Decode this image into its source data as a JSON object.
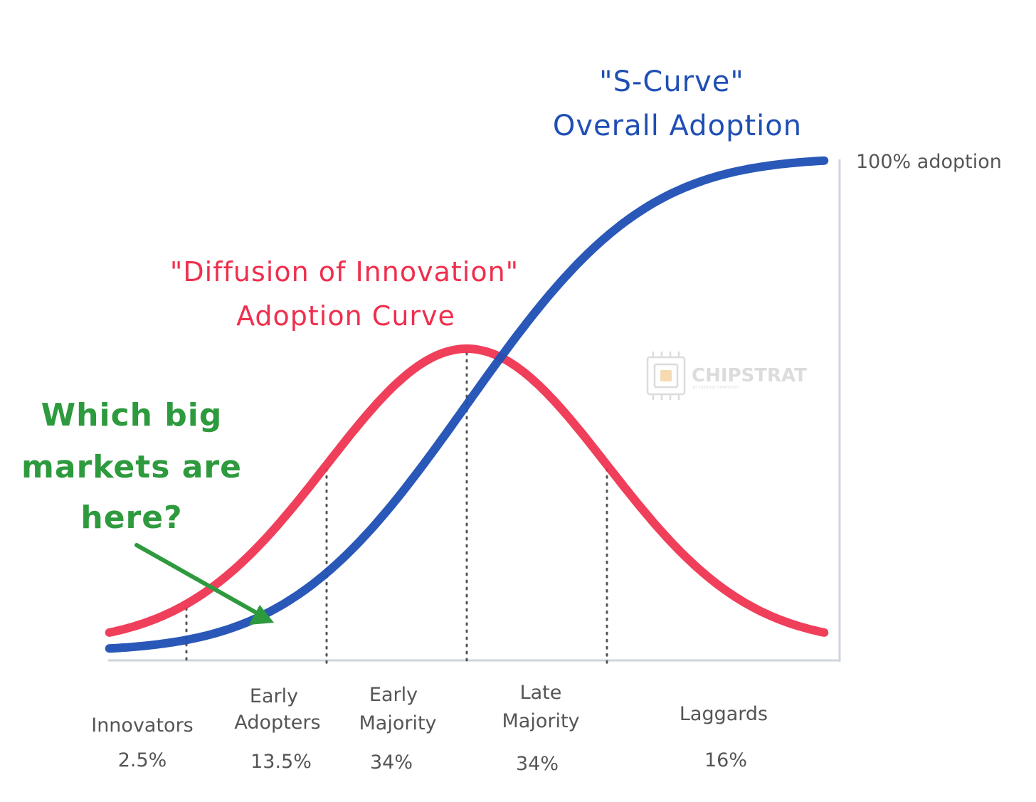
{
  "colors": {
    "bell": "#ef2f4d",
    "scurve": "#1f4fb4",
    "question": "#2e9a3e",
    "text": "#555555",
    "axis": "#d0d4dc",
    "divider": "#555555",
    "watermark": "#d9d9d9"
  },
  "scurve_title": {
    "line1": "\"S-Curve\"",
    "line2": "Overall Adoption"
  },
  "bell_title": {
    "line1": "\"Diffusion of Innovation\"",
    "line2": "Adoption Curve"
  },
  "question": {
    "line1": "Which big",
    "line2": "markets are",
    "line3": "here?"
  },
  "max_label": "100% adoption",
  "segments": [
    {
      "label_lines": [
        "Innovators"
      ],
      "share": "2.5%"
    },
    {
      "label_lines": [
        "Early",
        "Adopters"
      ],
      "share": "13.5%"
    },
    {
      "label_lines": [
        "Early",
        "Majority"
      ],
      "share": "34%"
    },
    {
      "label_lines": [
        "Late",
        "Majority"
      ],
      "share": "34%"
    },
    {
      "label_lines": [
        "Laggards"
      ],
      "share": "16%"
    }
  ],
  "watermark": {
    "name": "CHIPSTRAT",
    "tagline": "BY CREATIVE STRATEGIES",
    "icon": "chip-icon"
  },
  "chart_data": {
    "type": "line",
    "x_unit": "standard deviations from mean adoption time",
    "x_range": [
      -2.55,
      2.55
    ],
    "dividers_sd": [
      -2,
      -1,
      0,
      1
    ],
    "series": [
      {
        "kind": "normal-pdf",
        "mean": 0,
        "sd": 1
      },
      {
        "kind": "normal-cdf",
        "mean": 0,
        "sd": 1
      }
    ]
  }
}
